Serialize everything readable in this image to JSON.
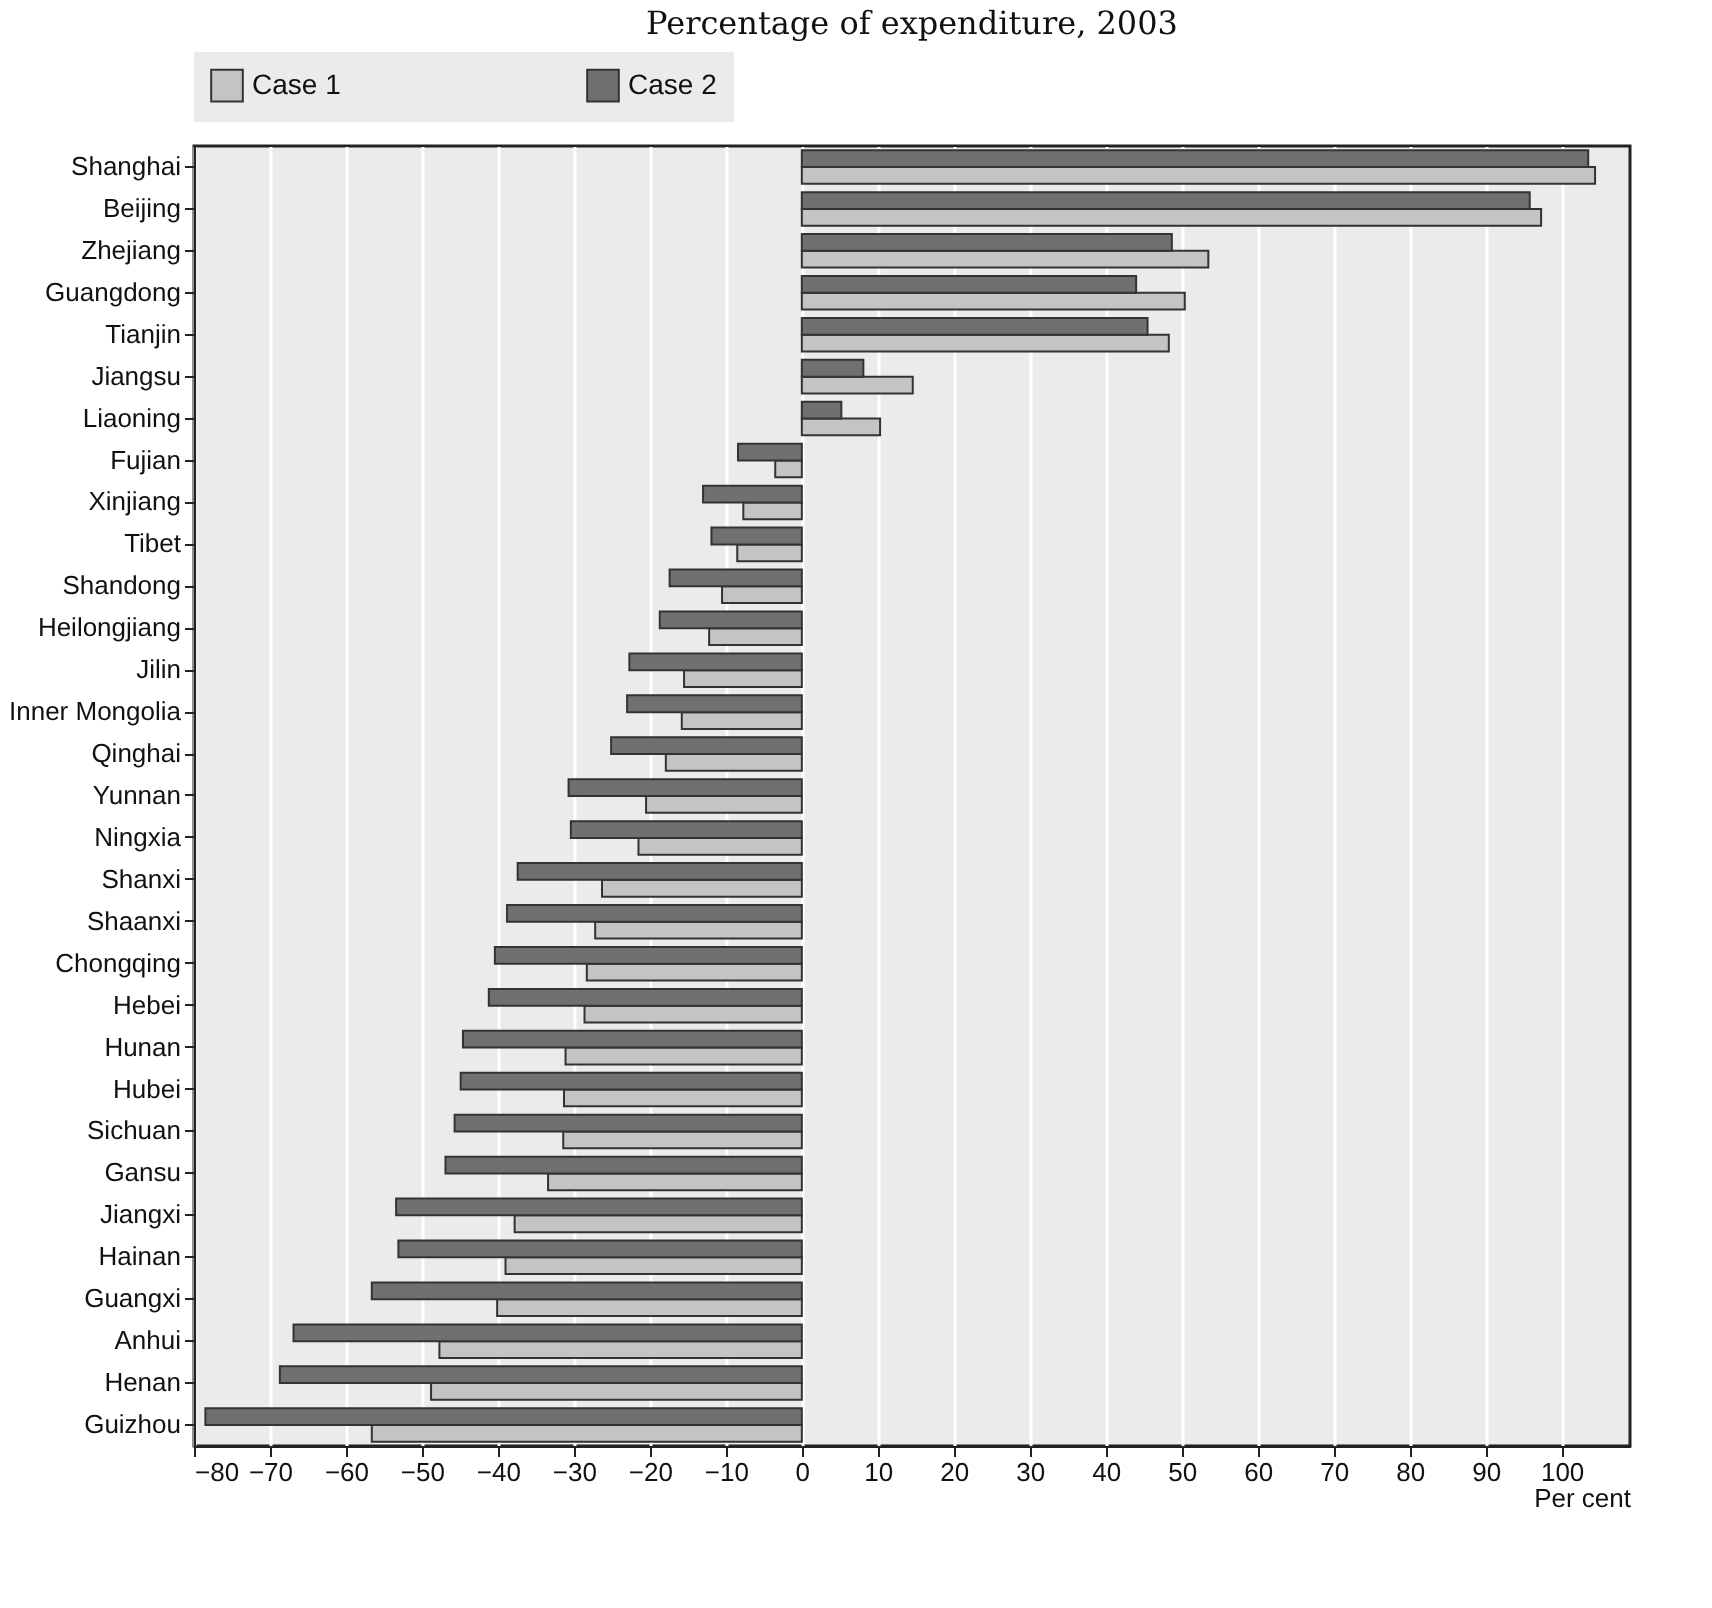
{
  "chart_data": {
    "type": "bar",
    "orientation": "horizontal",
    "title": "Percentage of expenditure, 2003",
    "xlabel": "Per cent",
    "categories": [
      "Shanghai",
      "Beijing",
      "Zhejiang",
      "Guangdong",
      "Tianjin",
      "Jiangsu",
      "Liaoning",
      "Fujian",
      "Xinjiang",
      "Tibet",
      "Shandong",
      "Heilongjiang",
      "Jilin",
      "Inner Mongolia",
      "Qinghai",
      "Yunnan",
      "Ningxia",
      "Shanxi",
      "Shaanxi",
      "Chongqing",
      "Hebei",
      "Hunan",
      "Hubei",
      "Sichuan",
      "Gansu",
      "Jiangxi",
      "Hainan",
      "Guangxi",
      "Anhui",
      "Henan",
      "Guizhou"
    ],
    "series": [
      {
        "name": "Case 1",
        "color": "#c4c4c4",
        "values": [
          104.4,
          97.3,
          53.5,
          50.4,
          48.3,
          14.6,
          10.3,
          -3.5,
          -7.7,
          -8.5,
          -10.5,
          -12.2,
          -15.5,
          -15.8,
          -17.9,
          -20.5,
          -21.5,
          -26.3,
          -27.2,
          -28.3,
          -28.6,
          -31.1,
          -31.3,
          -31.4,
          -33.4,
          -37.8,
          -39.0,
          -40.1,
          -47.7,
          -48.8,
          -56.6
        ]
      },
      {
        "name": "Case 2",
        "color": "#707070",
        "values": [
          103.5,
          95.8,
          48.7,
          44.0,
          45.5,
          8.1,
          5.2,
          -8.4,
          -13.0,
          -11.9,
          -17.4,
          -18.7,
          -22.7,
          -23.0,
          -25.1,
          -30.7,
          -30.4,
          -37.4,
          -38.8,
          -40.4,
          -41.2,
          -44.6,
          -44.9,
          -45.7,
          -46.9,
          -53.4,
          -53.1,
          -56.6,
          -66.9,
          -68.7,
          -78.5
        ]
      }
    ],
    "xlim": [
      -80,
      109
    ],
    "xticks": [
      -80,
      -70,
      -60,
      -50,
      -40,
      -30,
      -20,
      -10,
      0,
      10,
      20,
      30,
      40,
      50,
      60,
      70,
      80,
      90,
      100
    ],
    "grid": "x",
    "legend": "top"
  }
}
